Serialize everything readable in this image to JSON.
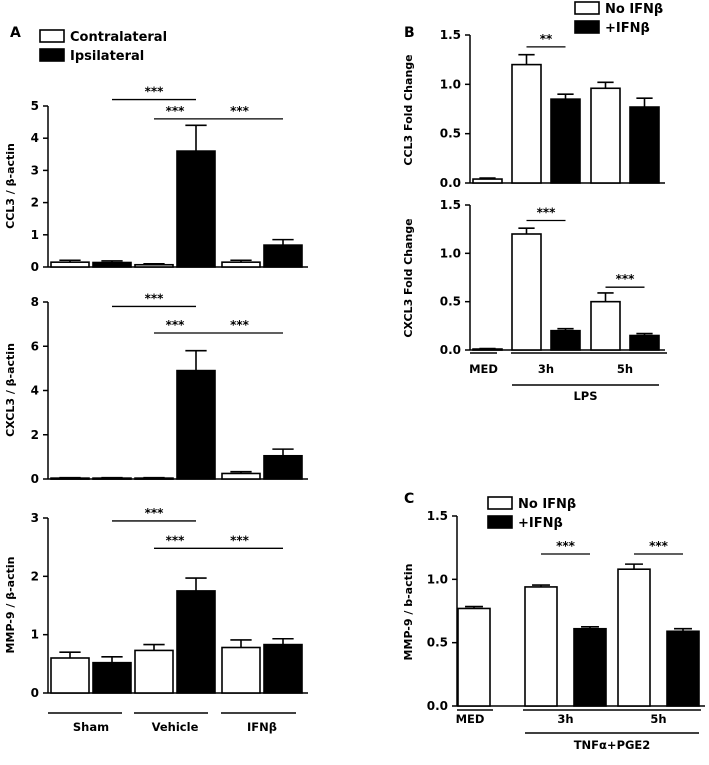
{
  "chart_data": [
    {
      "id": "A1",
      "type": "bar",
      "panel_label": "A",
      "ylabel": "CCL3 / β-actin",
      "ylim": [
        0,
        5
      ],
      "yticks": [
        0,
        1,
        2,
        3,
        4,
        5
      ],
      "legend": {
        "position": "top-left",
        "entries": [
          {
            "label": "Contralateral",
            "fill": "white"
          },
          {
            "label": "Ipsilateral",
            "fill": "black"
          }
        ]
      },
      "groups": [
        "Sham",
        "Vehicle",
        "IFNβ"
      ],
      "series": [
        {
          "name": "Contralateral",
          "fill": "white",
          "values": [
            0.15,
            0.07,
            0.15
          ],
          "errors": [
            0.06,
            0.03,
            0.06
          ]
        },
        {
          "name": "Ipsilateral",
          "fill": "black",
          "values": [
            0.14,
            3.6,
            0.68
          ],
          "errors": [
            0.05,
            0.8,
            0.17
          ]
        }
      ],
      "significance": [
        {
          "label": "***",
          "from": [
            0,
            1
          ],
          "to": [
            1,
            1
          ],
          "y": 5.2
        },
        {
          "label": "***",
          "from": [
            1,
            0
          ],
          "to": [
            1,
            1
          ],
          "y": 4.6
        },
        {
          "label": "***",
          "from": [
            1,
            1
          ],
          "to": [
            2,
            1
          ],
          "y": 4.6
        }
      ]
    },
    {
      "id": "A2",
      "type": "bar",
      "ylabel": "CXCL3 / β-actin",
      "ylim": [
        0,
        8
      ],
      "yticks": [
        0,
        2,
        4,
        6,
        8
      ],
      "groups": [
        "Sham",
        "Vehicle",
        "IFNβ"
      ],
      "series": [
        {
          "name": "Contralateral",
          "fill": "white",
          "values": [
            0.04,
            0.04,
            0.25
          ],
          "errors": [
            0.02,
            0.02,
            0.08
          ]
        },
        {
          "name": "Ipsilateral",
          "fill": "black",
          "values": [
            0.04,
            4.9,
            1.05
          ],
          "errors": [
            0.02,
            0.9,
            0.3
          ]
        }
      ],
      "significance": [
        {
          "label": "***",
          "from": [
            0,
            1
          ],
          "to": [
            1,
            1
          ],
          "y": 7.8
        },
        {
          "label": "***",
          "from": [
            1,
            0
          ],
          "to": [
            1,
            1
          ],
          "y": 6.6
        },
        {
          "label": "***",
          "from": [
            1,
            1
          ],
          "to": [
            2,
            1
          ],
          "y": 6.6
        }
      ]
    },
    {
      "id": "A3",
      "type": "bar",
      "ylabel": "MMP-9 / β-actin",
      "ylim": [
        0,
        3
      ],
      "yticks": [
        0,
        1,
        2,
        3
      ],
      "groups": [
        "Sham",
        "Vehicle",
        "IFNβ"
      ],
      "group_labels": [
        "Sham",
        "Vehicle",
        "IFNβ"
      ],
      "series": [
        {
          "name": "Contralateral",
          "fill": "white",
          "values": [
            0.6,
            0.73,
            0.78
          ],
          "errors": [
            0.1,
            0.1,
            0.13
          ]
        },
        {
          "name": "Ipsilateral",
          "fill": "black",
          "values": [
            0.52,
            1.75,
            0.83
          ],
          "errors": [
            0.1,
            0.22,
            0.1
          ]
        }
      ],
      "significance": [
        {
          "label": "***",
          "from": [
            0,
            1
          ],
          "to": [
            1,
            1
          ],
          "y": 2.95
        },
        {
          "label": "***",
          "from": [
            1,
            0
          ],
          "to": [
            1,
            1
          ],
          "y": 2.48
        },
        {
          "label": "***",
          "from": [
            1,
            1
          ],
          "to": [
            2,
            1
          ],
          "y": 2.48
        }
      ]
    },
    {
      "id": "B1",
      "type": "bar",
      "panel_label": "B",
      "ylabel": "CCL3 Fold Change",
      "ylim": [
        0,
        1.5
      ],
      "yticks": [
        0.0,
        0.5,
        1.0,
        1.5
      ],
      "legend": {
        "position": "top-right",
        "entries": [
          {
            "label": "No IFNβ",
            "fill": "white"
          },
          {
            "label": "+IFNβ",
            "fill": "black"
          }
        ]
      },
      "groups": [
        "MED",
        "3h",
        "5h"
      ],
      "series": [
        {
          "name": "No IFNβ",
          "fill": "white",
          "values": [
            0.04,
            1.2,
            0.96
          ],
          "errors": [
            0.01,
            0.1,
            0.06
          ]
        },
        {
          "name": "+IFNβ",
          "fill": "black",
          "values": [
            null,
            0.85,
            0.77
          ],
          "errors": [
            null,
            0.05,
            0.09
          ]
        }
      ],
      "significance": [
        {
          "label": "**",
          "from": [
            1,
            0
          ],
          "to": [
            1,
            1
          ],
          "y": 1.38
        }
      ]
    },
    {
      "id": "B2",
      "type": "bar",
      "ylabel": "CXCL3 Fold Change",
      "ylim": [
        0,
        1.5
      ],
      "yticks": [
        0.0,
        0.5,
        1.0,
        1.5
      ],
      "groups": [
        "MED",
        "3h",
        "5h"
      ],
      "group_labels": [
        "MED",
        "3h",
        "5h"
      ],
      "bracket": {
        "label": "LPS",
        "from": 1,
        "to": 2
      },
      "series": [
        {
          "name": "No IFNβ",
          "fill": "white",
          "values": [
            0.01,
            1.2,
            0.5
          ],
          "errors": [
            0.005,
            0.06,
            0.09
          ]
        },
        {
          "name": "+IFNβ",
          "fill": "black",
          "values": [
            null,
            0.2,
            0.15
          ],
          "errors": [
            null,
            0.02,
            0.02
          ]
        }
      ],
      "significance": [
        {
          "label": "***",
          "from": [
            1,
            0
          ],
          "to": [
            1,
            1
          ],
          "y": 1.34
        },
        {
          "label": "***",
          "from": [
            2,
            0
          ],
          "to": [
            2,
            1
          ],
          "y": 0.65
        }
      ]
    },
    {
      "id": "C",
      "type": "bar",
      "panel_label": "C",
      "ylabel": "MMP-9 / b-actin",
      "ylim": [
        0,
        1.5
      ],
      "yticks": [
        0.0,
        0.5,
        1.0,
        1.5
      ],
      "legend": {
        "position": "top-left",
        "entries": [
          {
            "label": "No IFNβ",
            "fill": "white"
          },
          {
            "label": "+IFNβ",
            "fill": "black"
          }
        ]
      },
      "groups": [
        "MED",
        "3h",
        "5h"
      ],
      "group_labels": [
        "MED",
        "3h",
        "5h"
      ],
      "bracket": {
        "label": "TNFα+PGE2",
        "from": 1,
        "to": 2
      },
      "series": [
        {
          "name": "No IFNβ",
          "fill": "white",
          "values": [
            0.77,
            0.94,
            1.08
          ],
          "errors": [
            0.015,
            0.015,
            0.04
          ]
        },
        {
          "name": "+IFNβ",
          "fill": "black",
          "values": [
            null,
            0.61,
            0.59
          ],
          "errors": [
            null,
            0.015,
            0.02
          ]
        }
      ],
      "significance": [
        {
          "label": "***",
          "from": [
            1,
            0
          ],
          "to": [
            1,
            1
          ],
          "y": 1.2
        },
        {
          "label": "***",
          "from": [
            2,
            0
          ],
          "to": [
            2,
            1
          ],
          "y": 1.2
        }
      ]
    }
  ]
}
